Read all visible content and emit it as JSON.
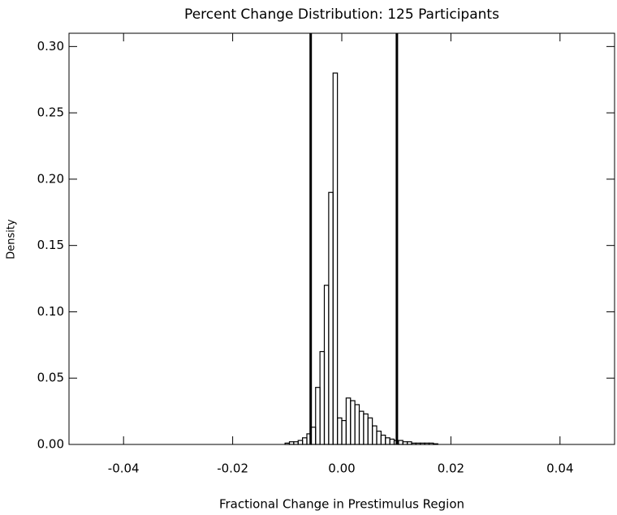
{
  "chart_data": {
    "type": "histogram",
    "title": "Percent Change Distribution: 125 Participants",
    "xlabel": "Fractional Change in Prestimulus Region",
    "ylabel": "Density",
    "bins": [
      -0.0104,
      -0.0096,
      -0.0088,
      -0.008,
      -0.0072,
      -0.0064,
      -0.0056,
      -0.0048,
      -0.004,
      -0.0032,
      -0.0024,
      -0.0016,
      -0.0008,
      0,
      0.0008,
      0.0016,
      0.0024,
      0.0032,
      0.004,
      0.0048,
      0.0056,
      0.0064,
      0.0072,
      0.008,
      0.0088,
      0.0096,
      0.0104,
      0.0112,
      0.012,
      0.0128,
      0.0136,
      0.0144,
      0.0152,
      0.016,
      0.0168,
      0.0176
    ],
    "values": [
      0.001,
      0.002,
      0.002,
      0.003,
      0.005,
      0.008,
      0.013,
      0.043,
      0.07,
      0.12,
      0.19,
      0.28,
      0.02,
      0.018,
      0.035,
      0.033,
      0.03,
      0.025,
      0.023,
      0.02,
      0.014,
      0.01,
      0.007,
      0.005,
      0.004,
      0.003,
      0.003,
      0.002,
      0.002,
      0.001,
      0.001,
      0.001,
      0.001,
      0.001,
      0.0005
    ],
    "color": "#000000",
    "vlines": [
      -0.0057,
      0.0101
    ],
    "xlim": [
      -0.05,
      0.05
    ],
    "xticks": [
      -0.04,
      -0.02,
      {
        "value": 0,
        "label": "0.00"
      },
      0.02,
      0.04
    ],
    "ylim": [
      0,
      0.31
    ],
    "yticks": [
      {
        "value": 0,
        "label": "0.00"
      },
      0.05,
      {
        "value": 0.1,
        "label": "0.10"
      },
      0.15,
      {
        "value": 0.2,
        "label": "0.20"
      },
      0.25,
      {
        "value": 0.3,
        "label": "0.30"
      }
    ]
  }
}
